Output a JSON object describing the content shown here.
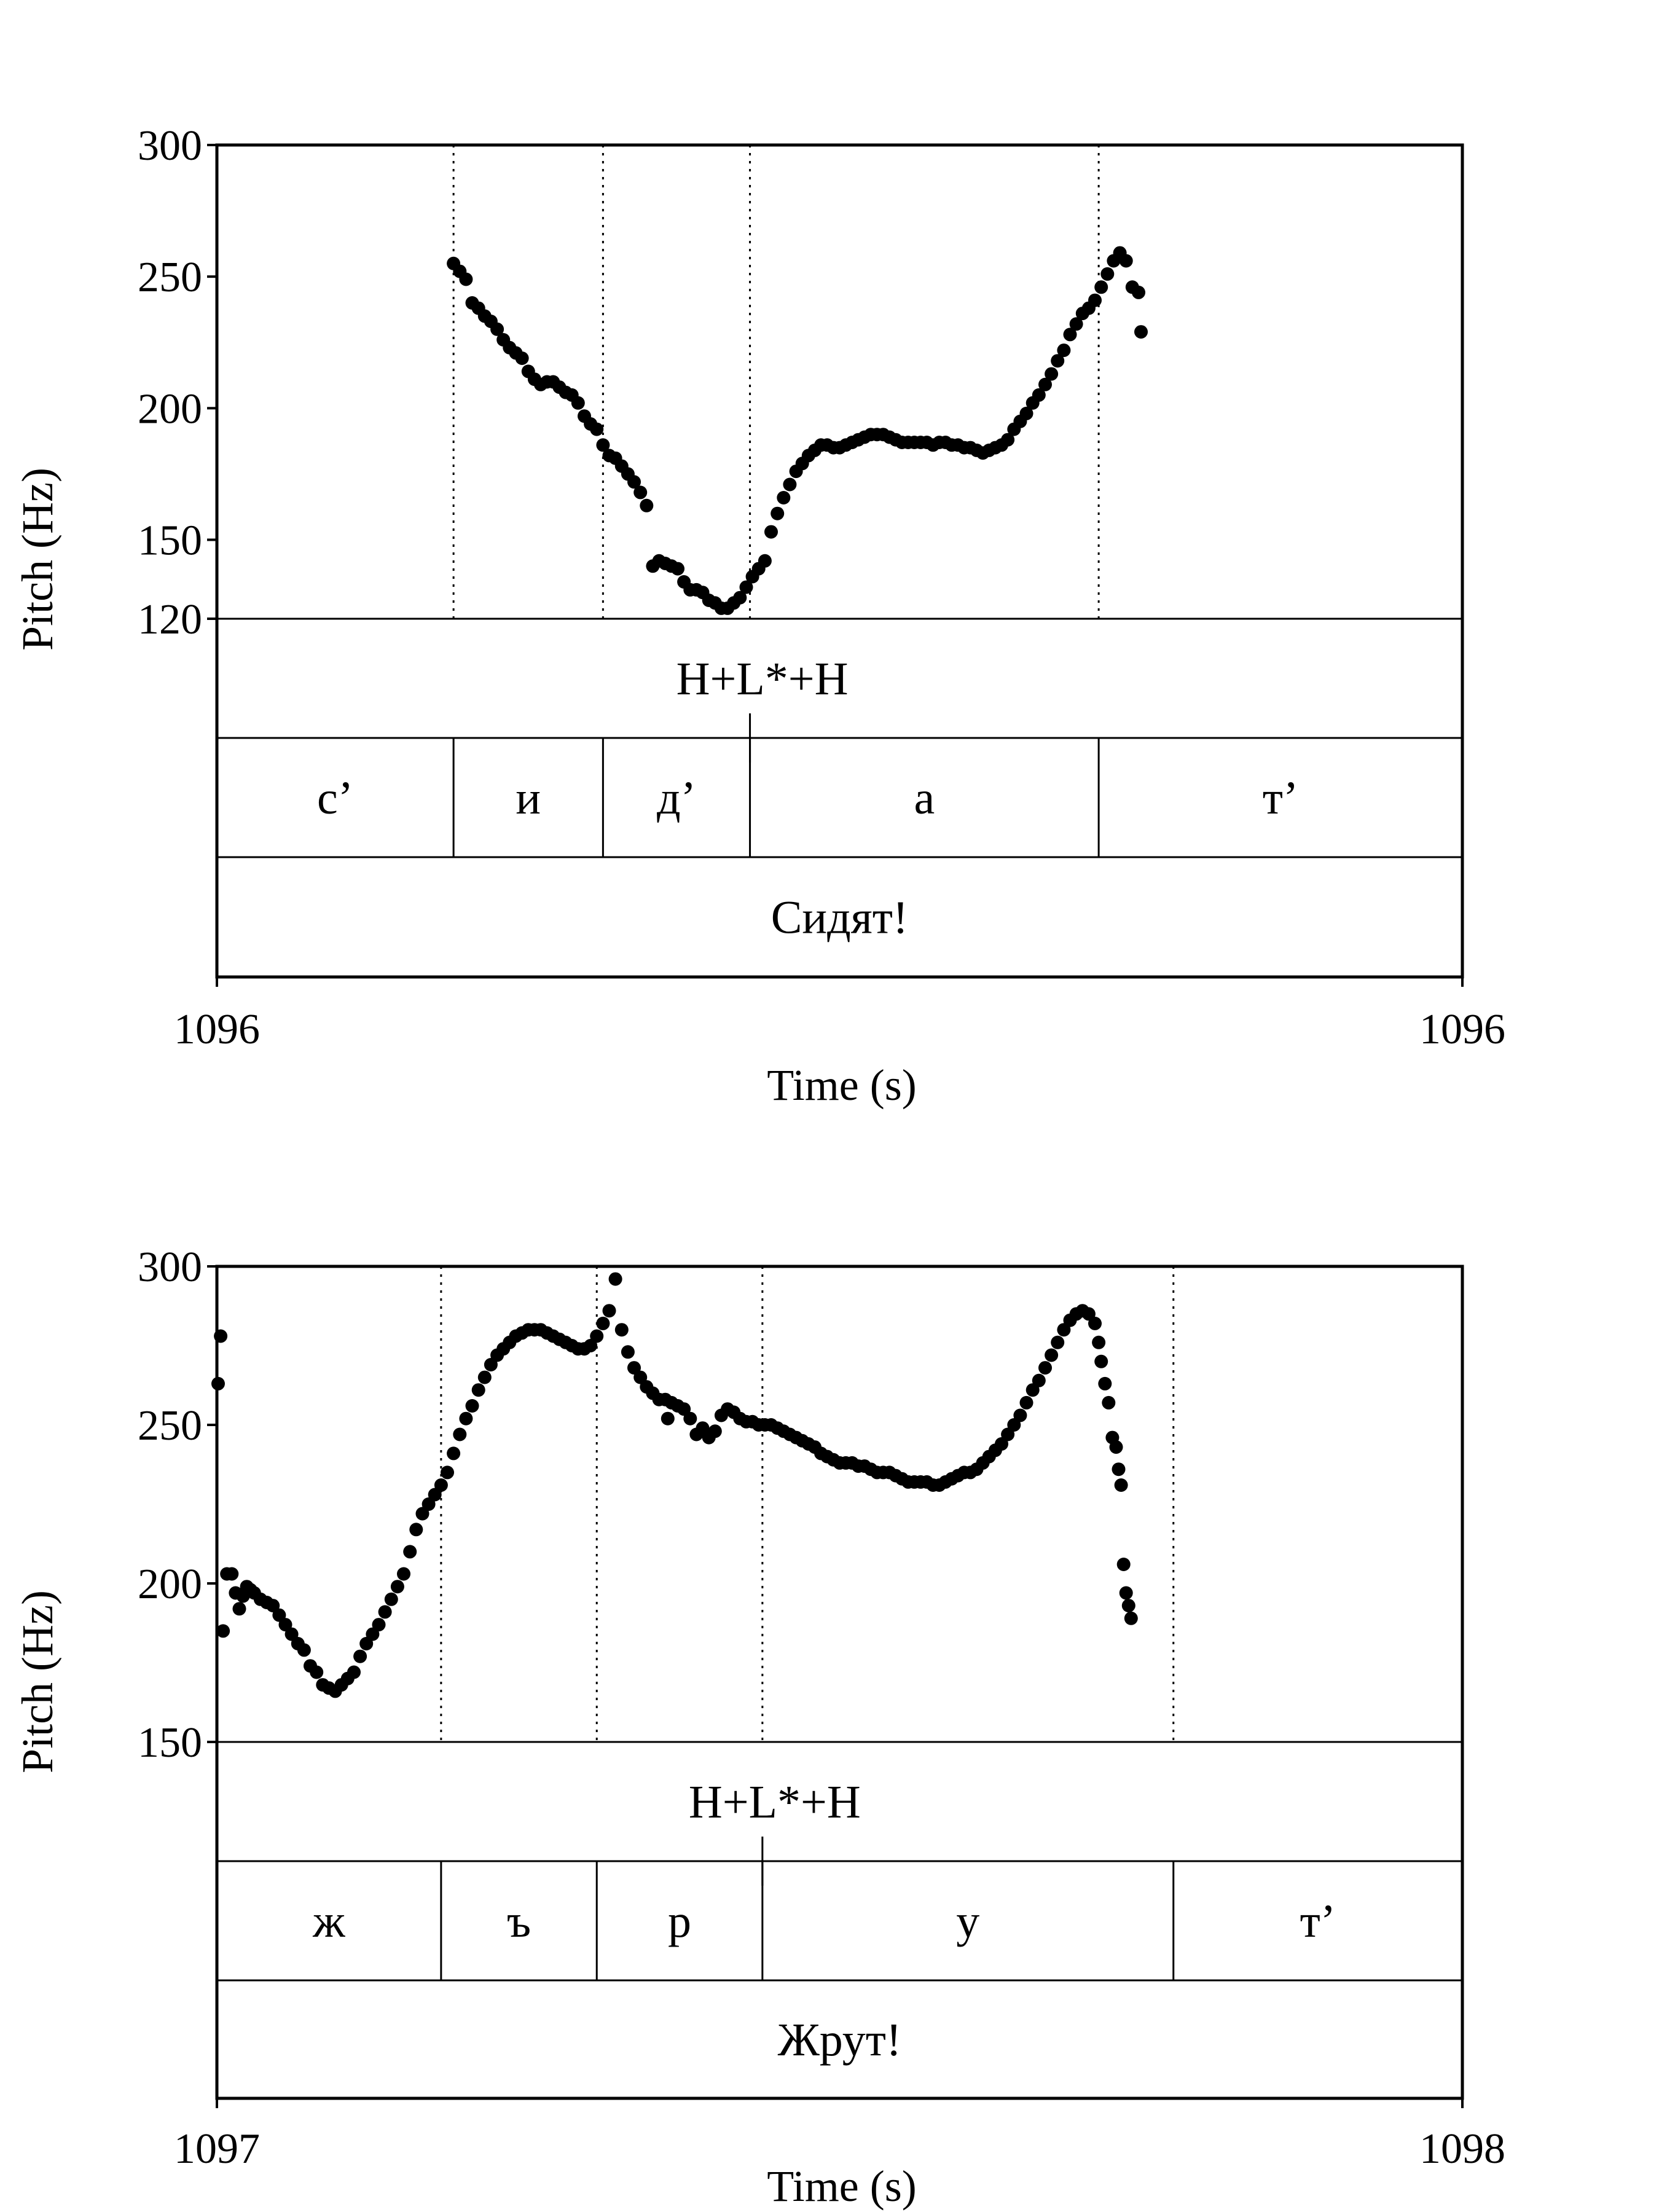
{
  "chart_data": [
    {
      "type": "scatter",
      "title": "",
      "xlabel": "Time (s)",
      "ylabel": "Pitch (Hz)",
      "x_tick_labels": [
        "1096",
        "1096"
      ],
      "y_ticks": [
        120,
        150,
        200,
        250,
        300
      ],
      "ylim": [
        120,
        300
      ],
      "grid": false,
      "boundaries": [
        0.19,
        0.31,
        0.428,
        0.708
      ],
      "tiers": {
        "tone": {
          "labels": [
            "H+L*+H"
          ],
          "mark": 0.428
        },
        "segments": [
          "с’",
          "и",
          "д’",
          "а",
          "т’"
        ],
        "word": [
          "Сидят!"
        ]
      },
      "series": [
        {
          "points": [
            [
              0.19,
              255
            ],
            [
              0.195,
              252
            ],
            [
              0.2,
              249
            ],
            [
              0.205,
              240
            ],
            [
              0.21,
              238
            ],
            [
              0.215,
              235
            ],
            [
              0.22,
              233
            ],
            [
              0.225,
              230
            ],
            [
              0.23,
              226
            ],
            [
              0.235,
              223
            ],
            [
              0.24,
              221
            ],
            [
              0.245,
              219
            ],
            [
              0.25,
              214
            ],
            [
              0.255,
              211
            ],
            [
              0.26,
              209
            ],
            [
              0.265,
              210
            ],
            [
              0.27,
              210
            ],
            [
              0.275,
              208
            ],
            [
              0.28,
              206
            ],
            [
              0.285,
              205
            ],
            [
              0.29,
              202
            ],
            [
              0.295,
              197
            ],
            [
              0.3,
              194
            ],
            [
              0.305,
              192
            ],
            [
              0.31,
              186
            ],
            [
              0.315,
              182
            ],
            [
              0.32,
              181
            ],
            [
              0.325,
              178
            ],
            [
              0.33,
              175
            ],
            [
              0.335,
              172
            ],
            [
              0.34,
              168
            ],
            [
              0.345,
              163
            ],
            [
              0.35,
              140
            ],
            [
              0.355,
              142
            ],
            [
              0.36,
              141
            ],
            [
              0.365,
              140
            ],
            [
              0.37,
              139
            ],
            [
              0.375,
              134
            ],
            [
              0.38,
              131
            ],
            [
              0.385,
              131
            ],
            [
              0.39,
              130
            ],
            [
              0.395,
              127
            ],
            [
              0.4,
              126
            ],
            [
              0.405,
              124
            ],
            [
              0.41,
              124
            ],
            [
              0.415,
              126
            ],
            [
              0.42,
              128
            ],
            [
              0.425,
              132
            ],
            [
              0.43,
              136
            ],
            [
              0.435,
              139
            ],
            [
              0.44,
              142
            ],
            [
              0.445,
              153
            ],
            [
              0.45,
              160
            ],
            [
              0.455,
              166
            ],
            [
              0.46,
              171
            ],
            [
              0.465,
              176
            ],
            [
              0.47,
              179
            ],
            [
              0.475,
              182
            ],
            [
              0.48,
              184
            ],
            [
              0.485,
              186
            ],
            [
              0.49,
              186
            ],
            [
              0.495,
              185
            ],
            [
              0.5,
              185
            ],
            [
              0.505,
              186
            ],
            [
              0.51,
              187
            ],
            [
              0.515,
              188
            ],
            [
              0.52,
              189
            ],
            [
              0.525,
              190
            ],
            [
              0.53,
              190
            ],
            [
              0.535,
              190
            ],
            [
              0.54,
              189
            ],
            [
              0.545,
              188
            ],
            [
              0.55,
              187
            ],
            [
              0.555,
              187
            ],
            [
              0.56,
              187
            ],
            [
              0.565,
              187
            ],
            [
              0.57,
              187
            ],
            [
              0.575,
              186
            ],
            [
              0.58,
              187
            ],
            [
              0.585,
              187
            ],
            [
              0.59,
              186
            ],
            [
              0.595,
              186
            ],
            [
              0.6,
              185
            ],
            [
              0.605,
              185
            ],
            [
              0.61,
              184
            ],
            [
              0.615,
              183
            ],
            [
              0.62,
              184
            ],
            [
              0.625,
              185
            ],
            [
              0.63,
              186
            ],
            [
              0.635,
              188
            ],
            [
              0.64,
              192
            ],
            [
              0.645,
              195
            ],
            [
              0.65,
              198
            ],
            [
              0.655,
              202
            ],
            [
              0.66,
              205
            ],
            [
              0.665,
              209
            ],
            [
              0.67,
              213
            ],
            [
              0.675,
              218
            ],
            [
              0.68,
              222
            ],
            [
              0.685,
              228
            ],
            [
              0.69,
              232
            ],
            [
              0.695,
              236
            ],
            [
              0.7,
              238
            ],
            [
              0.705,
              241
            ],
            [
              0.71,
              246
            ],
            [
              0.715,
              251
            ],
            [
              0.72,
              256
            ],
            [
              0.725,
              259
            ],
            [
              0.73,
              256
            ],
            [
              0.735,
              246
            ],
            [
              0.74,
              244
            ],
            [
              0.742,
              229
            ]
          ]
        }
      ]
    },
    {
      "type": "scatter",
      "title": "",
      "xlabel": "Time (s)",
      "ylabel": "Pitch (Hz)",
      "x_tick_labels": [
        "1097",
        "1098"
      ],
      "y_ticks": [
        150,
        200,
        250,
        300
      ],
      "ylim": [
        150,
        300
      ],
      "grid": false,
      "boundaries": [
        0.18,
        0.305,
        0.438,
        0.768
      ],
      "tiers": {
        "tone": {
          "labels": [
            "H+L*+H"
          ],
          "mark": 0.438
        },
        "segments": [
          "ж",
          "ъ",
          "р",
          "у",
          "т’"
        ],
        "word": [
          "Жрут!"
        ]
      },
      "series": [
        {
          "points": [
            [
              0.001,
              263
            ],
            [
              0.003,
              278
            ],
            [
              0.005,
              185
            ],
            [
              0.008,
              203
            ],
            [
              0.012,
              203
            ],
            [
              0.015,
              197
            ],
            [
              0.018,
              192
            ],
            [
              0.021,
              196
            ],
            [
              0.024,
              199
            ],
            [
              0.027,
              198
            ],
            [
              0.03,
              197
            ],
            [
              0.035,
              195
            ],
            [
              0.04,
              194
            ],
            [
              0.045,
              193
            ],
            [
              0.05,
              190
            ],
            [
              0.055,
              187
            ],
            [
              0.06,
              184
            ],
            [
              0.065,
              181
            ],
            [
              0.07,
              179
            ],
            [
              0.075,
              174
            ],
            [
              0.08,
              172
            ],
            [
              0.085,
              168
            ],
            [
              0.09,
              167
            ],
            [
              0.095,
              166
            ],
            [
              0.1,
              168
            ],
            [
              0.105,
              170
            ],
            [
              0.11,
              172
            ],
            [
              0.115,
              177
            ],
            [
              0.12,
              181
            ],
            [
              0.125,
              184
            ],
            [
              0.13,
              187
            ],
            [
              0.135,
              191
            ],
            [
              0.14,
              195
            ],
            [
              0.145,
              199
            ],
            [
              0.15,
              203
            ],
            [
              0.155,
              210
            ],
            [
              0.16,
              217
            ],
            [
              0.165,
              222
            ],
            [
              0.17,
              225
            ],
            [
              0.175,
              228
            ],
            [
              0.18,
              231
            ],
            [
              0.185,
              235
            ],
            [
              0.19,
              241
            ],
            [
              0.195,
              247
            ],
            [
              0.2,
              252
            ],
            [
              0.205,
              256
            ],
            [
              0.21,
              261
            ],
            [
              0.215,
              265
            ],
            [
              0.22,
              269
            ],
            [
              0.225,
              272
            ],
            [
              0.23,
              274
            ],
            [
              0.235,
              276
            ],
            [
              0.24,
              278
            ],
            [
              0.245,
              279
            ],
            [
              0.25,
              280
            ],
            [
              0.255,
              280
            ],
            [
              0.26,
              280
            ],
            [
              0.265,
              279
            ],
            [
              0.27,
              278
            ],
            [
              0.275,
              277
            ],
            [
              0.28,
              276
            ],
            [
              0.285,
              275
            ],
            [
              0.29,
              274
            ],
            [
              0.295,
              274
            ],
            [
              0.3,
              275
            ],
            [
              0.305,
              278
            ],
            [
              0.31,
              282
            ],
            [
              0.315,
              286
            ],
            [
              0.32,
              296
            ],
            [
              0.325,
              280
            ],
            [
              0.33,
              273
            ],
            [
              0.335,
              268
            ],
            [
              0.34,
              265
            ],
            [
              0.345,
              262
            ],
            [
              0.35,
              260
            ],
            [
              0.355,
              258
            ],
            [
              0.36,
              258
            ],
            [
              0.362,
              252
            ],
            [
              0.365,
              257
            ],
            [
              0.37,
              256
            ],
            [
              0.375,
              255
            ],
            [
              0.38,
              252
            ],
            [
              0.385,
              247
            ],
            [
              0.39,
              249
            ],
            [
              0.395,
              246
            ],
            [
              0.4,
              248
            ],
            [
              0.405,
              253
            ],
            [
              0.41,
              255
            ],
            [
              0.415,
              254
            ],
            [
              0.42,
              252
            ],
            [
              0.425,
              251
            ],
            [
              0.43,
              251
            ],
            [
              0.435,
              250
            ],
            [
              0.44,
              250
            ],
            [
              0.445,
              250
            ],
            [
              0.45,
              249
            ],
            [
              0.455,
              248
            ],
            [
              0.46,
              247
            ],
            [
              0.465,
              246
            ],
            [
              0.47,
              245
            ],
            [
              0.475,
              244
            ],
            [
              0.48,
              243
            ],
            [
              0.485,
              241
            ],
            [
              0.49,
              240
            ],
            [
              0.495,
              239
            ],
            [
              0.5,
              238
            ],
            [
              0.505,
              238
            ],
            [
              0.51,
              238
            ],
            [
              0.515,
              237
            ],
            [
              0.52,
              237
            ],
            [
              0.525,
              236
            ],
            [
              0.53,
              235
            ],
            [
              0.535,
              235
            ],
            [
              0.54,
              235
            ],
            [
              0.545,
              234
            ],
            [
              0.55,
              233
            ],
            [
              0.555,
              232
            ],
            [
              0.56,
              232
            ],
            [
              0.565,
              232
            ],
            [
              0.57,
              232
            ],
            [
              0.575,
              231
            ],
            [
              0.58,
              231
            ],
            [
              0.585,
              232
            ],
            [
              0.59,
              233
            ],
            [
              0.595,
              234
            ],
            [
              0.6,
              235
            ],
            [
              0.605,
              235
            ],
            [
              0.61,
              236
            ],
            [
              0.615,
              238
            ],
            [
              0.62,
              240
            ],
            [
              0.625,
              242
            ],
            [
              0.63,
              244
            ],
            [
              0.635,
              247
            ],
            [
              0.64,
              250
            ],
            [
              0.645,
              253
            ],
            [
              0.65,
              257
            ],
            [
              0.655,
              261
            ],
            [
              0.66,
              264
            ],
            [
              0.665,
              268
            ],
            [
              0.67,
              272
            ],
            [
              0.675,
              276
            ],
            [
              0.68,
              280
            ],
            [
              0.685,
              283
            ],
            [
              0.69,
              285
            ],
            [
              0.695,
              286
            ],
            [
              0.7,
              285
            ],
            [
              0.705,
              282
            ],
            [
              0.708,
              276
            ],
            [
              0.71,
              270
            ],
            [
              0.713,
              263
            ],
            [
              0.716,
              257
            ],
            [
              0.719,
              246
            ],
            [
              0.722,
              243
            ],
            [
              0.724,
              236
            ],
            [
              0.726,
              231
            ],
            [
              0.728,
              206
            ],
            [
              0.73,
              197
            ],
            [
              0.732,
              193
            ],
            [
              0.734,
              189
            ]
          ]
        }
      ]
    }
  ]
}
